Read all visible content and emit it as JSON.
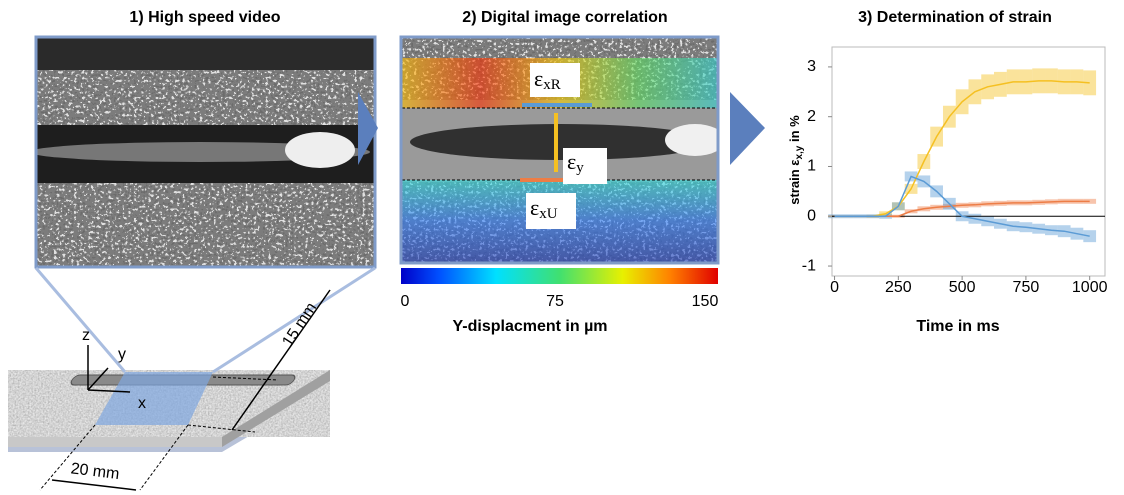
{
  "panels": [
    {
      "title": "1) High speed video"
    },
    {
      "title": "2) Digital image correlation"
    }
  ],
  "dic": {
    "labels": [
      {
        "symbol": "ε",
        "subscript": "xR"
      },
      {
        "symbol": "ε",
        "subscript": "y"
      },
      {
        "symbol": "ε",
        "subscript": "xU"
      }
    ]
  },
  "colorbar": {
    "ticks": [
      0,
      75,
      150
    ],
    "label": "Y-displacment in µm"
  },
  "specimen": {
    "axes": [
      "z",
      "y",
      "x"
    ],
    "dimensions": [
      "15 mm",
      "20 mm"
    ]
  },
  "chart_data": {
    "type": "line",
    "title": "3) Determination of strain",
    "xlabel": "Time in ms",
    "ylabel": [
      "strain ε",
      "x,y",
      " in %"
    ],
    "xlim": [
      -10,
      1060
    ],
    "xticks": [
      0,
      250,
      500,
      750,
      1000
    ],
    "ylim": [
      -1.2,
      3.4
    ],
    "yticks": [
      -1,
      0,
      1,
      2,
      3
    ],
    "hline": 0,
    "x": [
      0,
      50,
      100,
      150,
      200,
      250,
      300,
      350,
      400,
      450,
      500,
      550,
      600,
      650,
      700,
      750,
      800,
      850,
      900,
      950,
      1000
    ],
    "series": [
      {
        "color": "#f5c022",
        "values": [
          0,
          0,
          0,
          0,
          0.05,
          0.2,
          0.55,
          1.1,
          1.6,
          2.0,
          2.3,
          2.5,
          2.6,
          2.65,
          2.7,
          2.7,
          2.72,
          2.72,
          2.7,
          2.7,
          2.68
        ],
        "band": [
          0.02,
          0.02,
          0.02,
          0.03,
          0.05,
          0.08,
          0.1,
          0.15,
          0.2,
          0.22,
          0.25,
          0.25,
          0.25,
          0.25,
          0.25,
          0.25,
          0.25,
          0.25,
          0.25,
          0.25,
          0.25
        ]
      },
      {
        "color": "#ed7d46",
        "values": [
          0,
          0,
          0,
          0,
          0,
          0,
          0.1,
          0.15,
          0.18,
          0.2,
          0.22,
          0.23,
          0.25,
          0.26,
          0.27,
          0.27,
          0.28,
          0.29,
          0.3,
          0.3,
          0.3
        ],
        "band": [
          0.02,
          0.02,
          0.02,
          0.02,
          0.02,
          0.03,
          0.04,
          0.05,
          0.05,
          0.05,
          0.05,
          0.05,
          0.05,
          0.05,
          0.05,
          0.05,
          0.05,
          0.05,
          0.05,
          0.05,
          0.05
        ]
      },
      {
        "color": "#5b9bd5",
        "values": [
          0,
          0,
          0,
          0,
          0,
          0.2,
          0.8,
          0.7,
          0.5,
          0.25,
          0,
          -0.05,
          -0.1,
          -0.15,
          -0.2,
          -0.22,
          -0.25,
          -0.28,
          -0.3,
          -0.35,
          -0.4
        ],
        "band": [
          0.04,
          0.04,
          0.04,
          0.04,
          0.05,
          0.08,
          0.1,
          0.12,
          0.12,
          0.12,
          0.1,
          0.1,
          0.1,
          0.1,
          0.1,
          0.1,
          0.1,
          0.1,
          0.12,
          0.12,
          0.12
        ]
      }
    ]
  }
}
